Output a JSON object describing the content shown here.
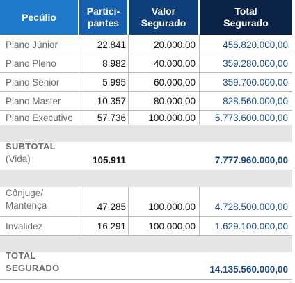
{
  "header": {
    "col1": "Pecúlio",
    "col2_line1": "Partici-",
    "col2_line2": "pantes",
    "col3_line1": "Valor",
    "col3_line2": "Segurado",
    "col4_line1": "Total",
    "col4_line2": "Segurado"
  },
  "rows": [
    {
      "plano": "Plano Júnior",
      "participantes": "22.841",
      "valor": "20.000,00",
      "total": "456.820.000,00"
    },
    {
      "plano": "Plano Pleno",
      "participantes": "8.982",
      "valor": "40.000,00",
      "total": "359.280.000,00"
    },
    {
      "plano": "Plano Sênior",
      "participantes": "5.995",
      "valor": "60.000,00",
      "total": "359.700.000,00"
    },
    {
      "plano": "Plano Master",
      "participantes": "10.357",
      "valor": "80.000,00",
      "total": "828.560.000,00"
    },
    {
      "plano": "Plano Executivo",
      "participantes": "57.736",
      "valor": "100.000,00",
      "total": "5.773.600.000,00"
    }
  ],
  "subtotal": {
    "label": "SUBTOTAL",
    "sublabel": "(Vida)",
    "participantes": "105.911",
    "total": "7.777.960.000,00"
  },
  "other_rows": [
    {
      "line1": "Cônjuge/",
      "line2": "Mantença",
      "participantes": "47.285",
      "valor": "100.000,00",
      "total": "4.728.500.000,00"
    },
    {
      "line1": "Invalidez",
      "participantes": "16.291",
      "valor": "100.000,00",
      "total": "1.629.100.000,00"
    }
  ],
  "total": {
    "label_line1": "TOTAL",
    "label_line2": "SEGURADO",
    "total": "14.135.560.000,00"
  },
  "colors": {
    "header_col1": "#1f78c8",
    "header_col2": "#1560b0",
    "header_col3": "#0e3f7a",
    "header_col4": "#0a2346",
    "total_text": "#1a4a88",
    "label_text": "#6d6d6d",
    "band_gray": "#e6e6e6"
  }
}
